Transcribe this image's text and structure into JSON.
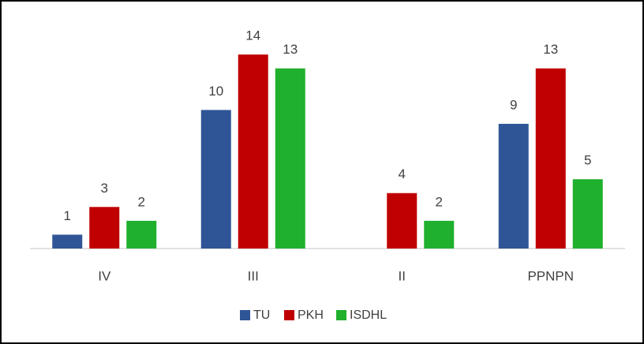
{
  "chart_data": {
    "type": "bar",
    "categories": [
      "IV",
      "III",
      "II",
      "PPNPN"
    ],
    "series": [
      {
        "name": "TU",
        "color": "#2f5597",
        "values": [
          1,
          10,
          null,
          9
        ]
      },
      {
        "name": "PKH",
        "color": "#c00000",
        "values": [
          3,
          14,
          4,
          13
        ]
      },
      {
        "name": "ISDHL",
        "color": "#1fb02d",
        "values": [
          2,
          13,
          2,
          5
        ]
      }
    ],
    "ylim": [
      0,
      16
    ],
    "legend": "bottom"
  }
}
